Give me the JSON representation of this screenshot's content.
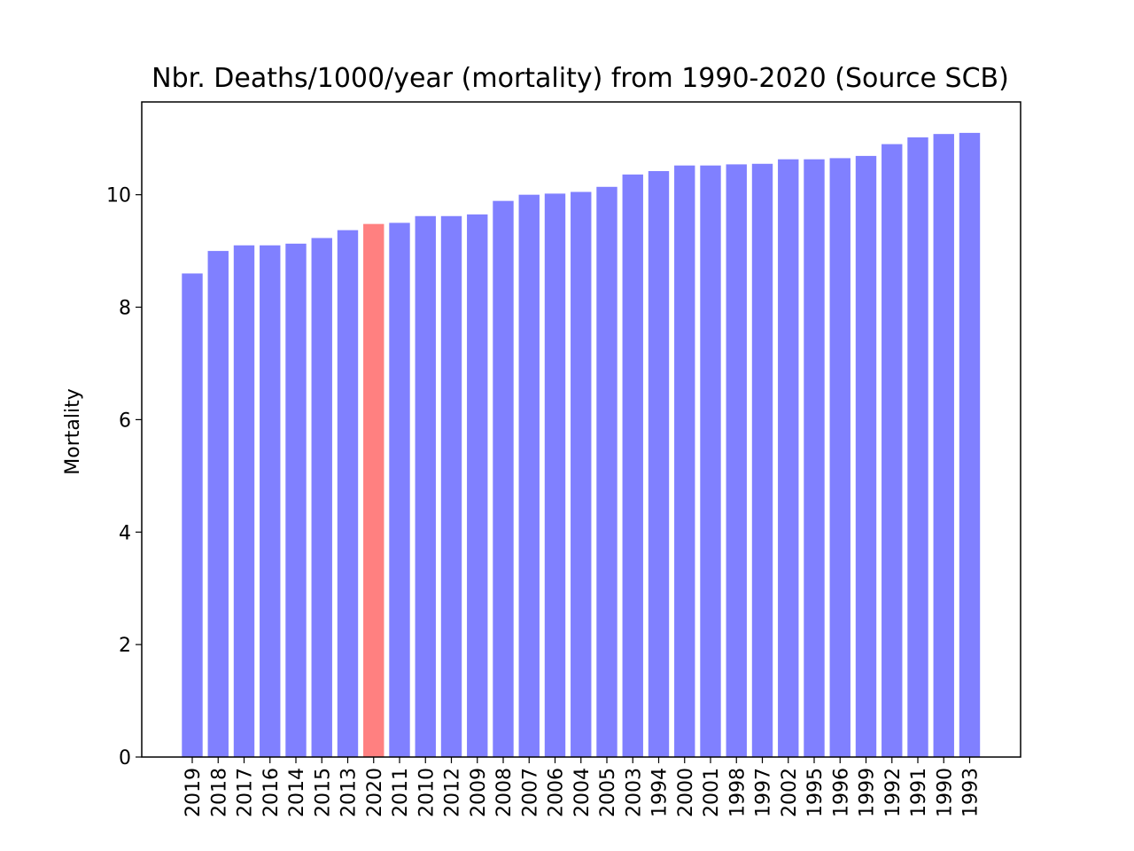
{
  "chart_data": {
    "type": "bar",
    "title": "Nbr. Deaths/1000/year (mortality) from 1990-2020 (Source SCB)",
    "xlabel": "",
    "ylabel": "Mortality",
    "ylim": [
      0,
      11.65
    ],
    "yticks": [
      0,
      2,
      4,
      6,
      8,
      10
    ],
    "categories": [
      "2019",
      "2018",
      "2017",
      "2016",
      "2014",
      "2015",
      "2013",
      "2020",
      "2011",
      "2010",
      "2012",
      "2009",
      "2008",
      "2007",
      "2006",
      "2004",
      "2005",
      "2003",
      "1994",
      "2000",
      "2001",
      "1998",
      "1997",
      "2002",
      "1995",
      "1996",
      "1999",
      "1992",
      "1991",
      "1990",
      "1993"
    ],
    "values": [
      8.6,
      9.0,
      9.1,
      9.1,
      9.13,
      9.23,
      9.37,
      9.48,
      9.5,
      9.62,
      9.62,
      9.65,
      9.89,
      10.0,
      10.02,
      10.05,
      10.14,
      10.36,
      10.42,
      10.52,
      10.52,
      10.54,
      10.55,
      10.63,
      10.63,
      10.65,
      10.69,
      10.9,
      11.02,
      11.08,
      11.1
    ],
    "highlight_category": "2020",
    "colors": {
      "default": "#8080ff",
      "highlight": "#ff8080",
      "axis": "#000000"
    },
    "grid": false,
    "legend": "none"
  }
}
